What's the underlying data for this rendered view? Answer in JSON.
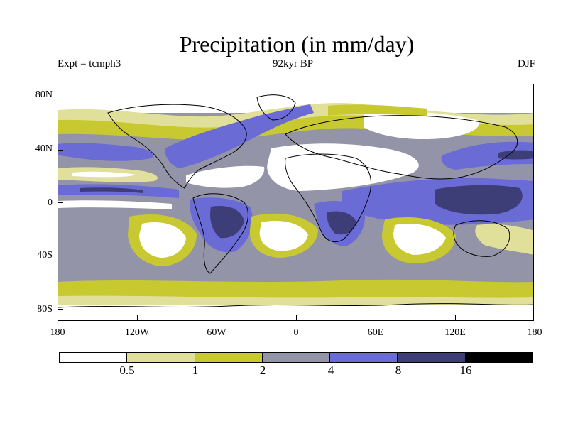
{
  "title": "Precipitation (in mm/day)",
  "experiment_label": "Expt = tcmph3",
  "period_label": "92kyr BP",
  "season_label": "DJF",
  "y_axis_ticks": [
    "80N",
    "40N",
    "0",
    "40S",
    "80S"
  ],
  "x_axis_ticks": [
    "180",
    "120W",
    "60W",
    "0",
    "60E",
    "120E",
    "180"
  ],
  "colorbar": {
    "labels": [
      "0.5",
      "1",
      "2",
      "4",
      "8",
      "16"
    ],
    "colors": [
      "#ffffff",
      "#e0e09a",
      "#c8c830",
      "#9494a8",
      "#6b6bd6",
      "#3d3d78",
      "#000000"
    ]
  },
  "map_colors": {
    "very_low": "#ffffff",
    "low": "#e0e09a",
    "moderate": "#c8c830",
    "medium": "#9494a8",
    "high": "#6b6bd6",
    "very_high": "#3d3d78",
    "coast": "#000000"
  }
}
